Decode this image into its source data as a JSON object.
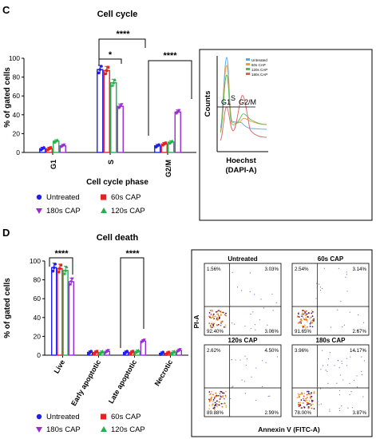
{
  "colors": {
    "untreated": "#1f1fe6",
    "cap60": "#e52222",
    "cap180": "#9a2bd6",
    "cap120": "#22b14c"
  },
  "panelC": {
    "letter": "C",
    "title": "Cell cycle",
    "ylabel": "% of gated cells",
    "xlabel": "Cell cycle phase",
    "legend": [
      "Untreated",
      "60s CAP",
      "180s CAP",
      "120s CAP"
    ],
    "significance": [
      "****",
      "*",
      "****"
    ],
    "histogram": {
      "ylabel": "Counts",
      "xlabel_line1": "Hoechst",
      "xlabel_line2": "(DAPI-A)",
      "legend": [
        "Untreated",
        "60s CAP",
        "120s CAP",
        "180s CAP"
      ],
      "gates": [
        "G1",
        "S",
        "G2/M"
      ]
    }
  },
  "panelD": {
    "letter": "D",
    "title": "Cell death",
    "ylabel": "% of gated cells",
    "legend": [
      "Untreated",
      "60s CAP",
      "180s CAP",
      "120s CAP"
    ],
    "significance": [
      "****",
      "****"
    ],
    "flow": {
      "ylabel": "PI-A",
      "xlabel": "Annexin V (FITC-A)",
      "plots": [
        {
          "title": "Untreated",
          "q_ul": "1.56%",
          "q_ur": "3.03%",
          "q_ll": "92.40%",
          "q_lr": "3.06%"
        },
        {
          "title": "60s CAP",
          "q_ul": "2.54%",
          "q_ur": "3.14%",
          "q_ll": "91.65%",
          "q_lr": "2.67%"
        },
        {
          "title": "120s CAP",
          "q_ul": "2.62%",
          "q_ur": "4.50%",
          "q_ll": "89.88%",
          "q_lr": "2.99%"
        },
        {
          "title": "180s CAP",
          "q_ul": "3.96%",
          "q_ur": "14.17%",
          "q_ll": "78.00%",
          "q_lr": "3.87%"
        }
      ]
    }
  },
  "chart_data": [
    {
      "type": "bar",
      "title": "Cell cycle",
      "xlabel": "Cell cycle phase",
      "ylabel": "% of gated cells",
      "ylim": [
        0,
        100
      ],
      "yticks": [
        0,
        20,
        40,
        60,
        80,
        100
      ],
      "categories": [
        "G1",
        "S",
        "G2/M"
      ],
      "series": [
        {
          "name": "Untreated",
          "values": [
            4,
            88,
            7
          ]
        },
        {
          "name": "60s CAP",
          "values": [
            4,
            87,
            9
          ]
        },
        {
          "name": "120s CAP",
          "values": [
            12,
            74,
            11
          ]
        },
        {
          "name": "180s CAP",
          "values": [
            7,
            49,
            43
          ]
        }
      ]
    },
    {
      "type": "bar",
      "title": "Cell death",
      "xlabel": "",
      "ylabel": "% of gated cells",
      "ylim": [
        0,
        100
      ],
      "yticks": [
        0,
        20,
        40,
        60,
        80,
        100
      ],
      "categories": [
        "Live",
        "Early apoptotic",
        "Late apoptotic",
        "Necrotic"
      ],
      "series": [
        {
          "name": "Untreated",
          "values": [
            93,
            3,
            3,
            2
          ]
        },
        {
          "name": "60s CAP",
          "values": [
            92,
            3,
            3,
            2
          ]
        },
        {
          "name": "120s CAP",
          "values": [
            90,
            3,
            4,
            3
          ]
        },
        {
          "name": "180s CAP",
          "values": [
            78,
            4,
            15,
            5
          ]
        }
      ]
    }
  ]
}
